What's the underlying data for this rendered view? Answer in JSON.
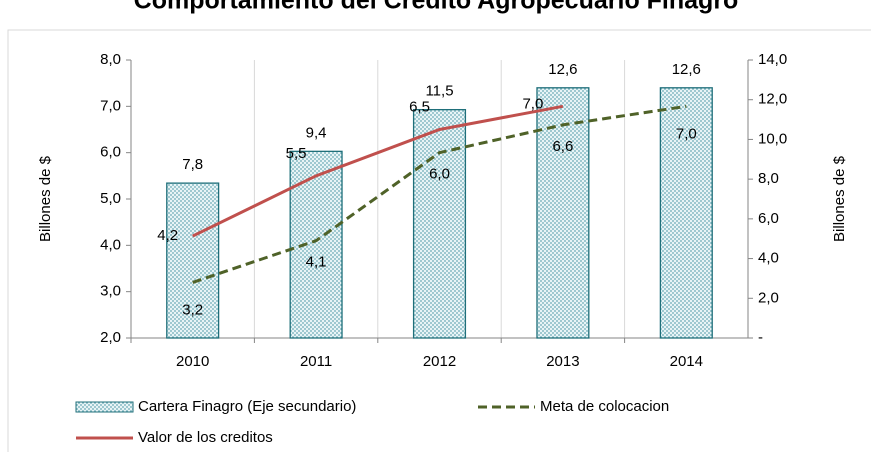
{
  "chart_data": {
    "type": "combo",
    "title": "Comportamiento del Credito Agropecuario Finagro",
    "categories": [
      "2010",
      "2011",
      "2012",
      "2013",
      "2014"
    ],
    "ylabel": "Billones de  $",
    "y2label": "Billones de $",
    "ylim": [
      2,
      8
    ],
    "yticks": [
      {
        "value": 2,
        "label": "2,0"
      },
      {
        "value": 3,
        "label": "3,0"
      },
      {
        "value": 4,
        "label": "4,0"
      },
      {
        "value": 5,
        "label": "5,0"
      },
      {
        "value": 6,
        "label": "6,0"
      },
      {
        "value": 7,
        "label": "7,0"
      },
      {
        "value": 8,
        "label": "8,0"
      }
    ],
    "y2lim": [
      0,
      14
    ],
    "y2ticks": [
      {
        "value": 0,
        "label": "-"
      },
      {
        "value": 2,
        "label": "2,0"
      },
      {
        "value": 4,
        "label": "4,0"
      },
      {
        "value": 6,
        "label": "6,0"
      },
      {
        "value": 8,
        "label": "8,0"
      },
      {
        "value": 10,
        "label": "10,0"
      },
      {
        "value": 12,
        "label": "12,0"
      },
      {
        "value": 14,
        "label": "14,0"
      }
    ],
    "series": [
      {
        "name": "Cartera Finagro (Eje secundario)",
        "type": "bar",
        "axis": "y2",
        "color": "#1f6f7a",
        "values": [
          7.8,
          9.4,
          11.5,
          12.6,
          12.6
        ],
        "value_labels": [
          "7,8",
          "9,4",
          "11,5",
          "12,6",
          "12,6"
        ]
      },
      {
        "name": "Meta de colocacion",
        "type": "line",
        "dashed": true,
        "color": "#4f6228",
        "values": [
          3.2,
          4.1,
          6.0,
          6.6,
          7.0
        ],
        "value_labels": [
          "3,2",
          "4,1",
          "6,0",
          "6,6",
          "7,0"
        ]
      },
      {
        "name": "Valor de los creditos",
        "type": "line",
        "color": "#c0504d",
        "values": [
          4.2,
          5.5,
          6.5,
          7.0,
          null
        ],
        "value_labels": [
          "4,2",
          "5,5",
          "6,5",
          "7,0",
          null
        ]
      }
    ]
  }
}
